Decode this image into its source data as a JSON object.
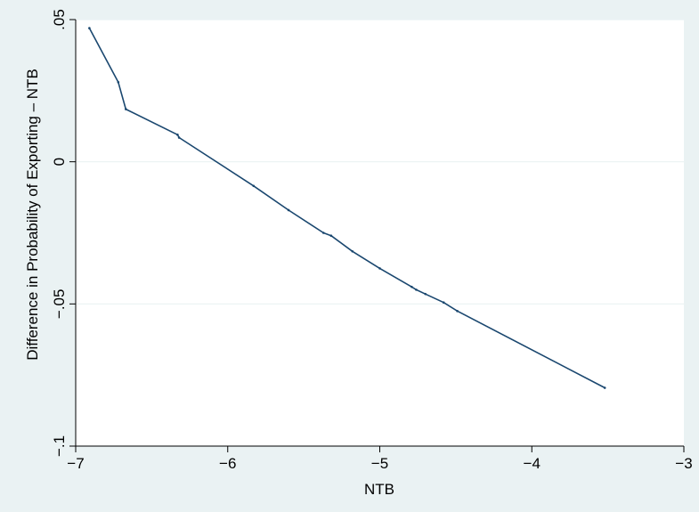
{
  "chart_data": {
    "type": "line",
    "title": "",
    "xlabel": "NTB",
    "ylabel": "Difference in Probability of Exporting – NTB",
    "xlim": [
      -7,
      -3
    ],
    "ylim": [
      -0.1,
      0.05
    ],
    "xticks": [
      {
        "value": -7,
        "label": "−7"
      },
      {
        "value": -6,
        "label": "−6"
      },
      {
        "value": -5,
        "label": "−5"
      },
      {
        "value": -4,
        "label": "−4"
      },
      {
        "value": -3,
        "label": "−3"
      }
    ],
    "yticks": [
      {
        "value": 0.05,
        "label": ".05"
      },
      {
        "value": 0,
        "label": "0"
      },
      {
        "value": -0.05,
        "label": "−.05"
      },
      {
        "value": -0.1,
        "label": "−.1"
      }
    ],
    "grid": true,
    "colors": {
      "background": "#eaf2f3",
      "plot_area": "#ffffff",
      "line": "#1a476f",
      "grid": "#eaf2f3"
    },
    "series": [
      {
        "x": [
          -6.91,
          -6.72,
          -6.67,
          -6.33,
          -6.32,
          -5.83,
          -5.6,
          -5.37,
          -5.32,
          -5.18,
          -5.0,
          -4.79,
          -4.76,
          -4.7,
          -4.58,
          -4.49,
          -3.52
        ],
        "y": [
          0.047,
          0.028,
          0.0185,
          0.0095,
          0.0085,
          -0.0085,
          -0.017,
          -0.025,
          -0.026,
          -0.0315,
          -0.0375,
          -0.044,
          -0.045,
          -0.0465,
          -0.0495,
          -0.0525,
          -0.0795
        ]
      }
    ]
  }
}
